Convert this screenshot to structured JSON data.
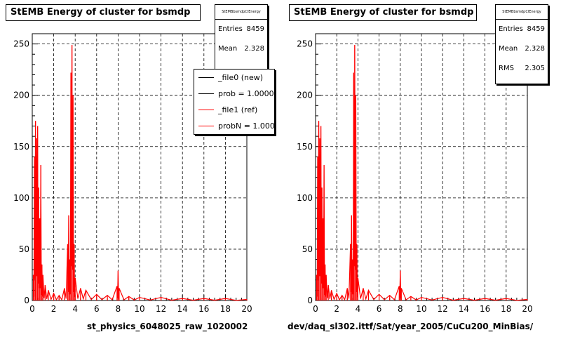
{
  "chart_data": [
    {
      "type": "histogram",
      "title": "StEMB Energy of cluster for bsmdp",
      "xlabel": "st_physics_6048025_raw_1020002",
      "ylabel": "",
      "xlim": [
        0,
        20
      ],
      "ylim": [
        0,
        260
      ],
      "x_ticks": [
        0,
        2,
        4,
        6,
        8,
        10,
        12,
        14,
        16,
        18,
        20
      ],
      "y_ticks": [
        0,
        50,
        100,
        150,
        200,
        250
      ],
      "grid": true,
      "stats": {
        "name": "StEMBbsmdpClEnergy",
        "rows": [
          {
            "label": "Entries",
            "value": "8459"
          },
          {
            "label": "Mean",
            "value": "2.328"
          }
        ]
      },
      "legend": {
        "position": "top-right",
        "entries": [
          {
            "label": "_file0 (new)",
            "color": "#000000"
          },
          {
            "label": "prob = 1.000000",
            "color": "#000000"
          },
          {
            "label": "_file1 (ref)",
            "color": "#ff0000"
          },
          {
            "label": "probN = 1.000000",
            "color": "#ff0000"
          }
        ]
      },
      "series": [
        {
          "name": "_file1 (ref)",
          "color": "#ff0000"
        }
      ],
      "peaks": [
        {
          "x": 0.1,
          "y": 25
        },
        {
          "x": 0.2,
          "y": 140
        },
        {
          "x": 0.3,
          "y": 175
        },
        {
          "x": 0.4,
          "y": 158
        },
        {
          "x": 0.5,
          "y": 170
        },
        {
          "x": 0.6,
          "y": 110
        },
        {
          "x": 0.7,
          "y": 80
        },
        {
          "x": 0.8,
          "y": 132
        },
        {
          "x": 0.9,
          "y": 35
        },
        {
          "x": 1.0,
          "y": 25
        },
        {
          "x": 1.2,
          "y": 15
        },
        {
          "x": 1.5,
          "y": 10
        },
        {
          "x": 2.0,
          "y": 7
        },
        {
          "x": 2.5,
          "y": 5
        },
        {
          "x": 3.0,
          "y": 12
        },
        {
          "x": 3.3,
          "y": 55
        },
        {
          "x": 3.4,
          "y": 83
        },
        {
          "x": 3.5,
          "y": 40
        },
        {
          "x": 3.6,
          "y": 222
        },
        {
          "x": 3.7,
          "y": 249
        },
        {
          "x": 3.8,
          "y": 200
        },
        {
          "x": 3.9,
          "y": 55
        },
        {
          "x": 4.0,
          "y": 22
        },
        {
          "x": 4.5,
          "y": 12
        },
        {
          "x": 5.0,
          "y": 10
        },
        {
          "x": 6.0,
          "y": 6
        },
        {
          "x": 7.0,
          "y": 5
        },
        {
          "x": 7.9,
          "y": 14
        },
        {
          "x": 8.0,
          "y": 29
        },
        {
          "x": 8.1,
          "y": 12
        },
        {
          "x": 9.0,
          "y": 4
        },
        {
          "x": 10.0,
          "y": 3
        },
        {
          "x": 12.0,
          "y": 3
        },
        {
          "x": 14.0,
          "y": 2
        },
        {
          "x": 16.0,
          "y": 2
        },
        {
          "x": 18.0,
          "y": 2
        },
        {
          "x": 20.0,
          "y": 1
        }
      ]
    },
    {
      "type": "histogram",
      "title": "StEMB Energy of cluster for bsmdp",
      "xlabel": "dev/daq_sl302.ittf/Sat/year_2005/CuCu200_MinBias/",
      "ylabel": "",
      "xlim": [
        0,
        20
      ],
      "ylim": [
        0,
        260
      ],
      "x_ticks": [
        0,
        2,
        4,
        6,
        8,
        10,
        12,
        14,
        16,
        18,
        20
      ],
      "y_ticks": [
        0,
        50,
        100,
        150,
        200,
        250
      ],
      "grid": true,
      "stats": {
        "name": "StEMBbsmdpClEnergy",
        "rows": [
          {
            "label": "Entries",
            "value": "8459"
          },
          {
            "label": "Mean",
            "value": "2.328"
          },
          {
            "label": "RMS",
            "value": "2.305"
          }
        ]
      },
      "series": [
        {
          "color": "#ff0000"
        }
      ],
      "peaks": [
        {
          "x": 0.1,
          "y": 25
        },
        {
          "x": 0.2,
          "y": 140
        },
        {
          "x": 0.3,
          "y": 175
        },
        {
          "x": 0.4,
          "y": 158
        },
        {
          "x": 0.5,
          "y": 170
        },
        {
          "x": 0.6,
          "y": 110
        },
        {
          "x": 0.7,
          "y": 80
        },
        {
          "x": 0.8,
          "y": 132
        },
        {
          "x": 0.9,
          "y": 35
        },
        {
          "x": 1.0,
          "y": 25
        },
        {
          "x": 1.2,
          "y": 15
        },
        {
          "x": 1.5,
          "y": 10
        },
        {
          "x": 2.0,
          "y": 7
        },
        {
          "x": 2.5,
          "y": 5
        },
        {
          "x": 3.0,
          "y": 12
        },
        {
          "x": 3.3,
          "y": 55
        },
        {
          "x": 3.4,
          "y": 83
        },
        {
          "x": 3.5,
          "y": 40
        },
        {
          "x": 3.6,
          "y": 222
        },
        {
          "x": 3.7,
          "y": 249
        },
        {
          "x": 3.8,
          "y": 200
        },
        {
          "x": 3.9,
          "y": 55
        },
        {
          "x": 4.0,
          "y": 22
        },
        {
          "x": 4.5,
          "y": 12
        },
        {
          "x": 5.0,
          "y": 10
        },
        {
          "x": 6.0,
          "y": 6
        },
        {
          "x": 7.0,
          "y": 5
        },
        {
          "x": 7.9,
          "y": 14
        },
        {
          "x": 8.0,
          "y": 29
        },
        {
          "x": 8.1,
          "y": 12
        },
        {
          "x": 9.0,
          "y": 4
        },
        {
          "x": 10.0,
          "y": 3
        },
        {
          "x": 12.0,
          "y": 3
        },
        {
          "x": 14.0,
          "y": 2
        },
        {
          "x": 16.0,
          "y": 2
        },
        {
          "x": 18.0,
          "y": 2
        },
        {
          "x": 20.0,
          "y": 1
        }
      ]
    }
  ]
}
